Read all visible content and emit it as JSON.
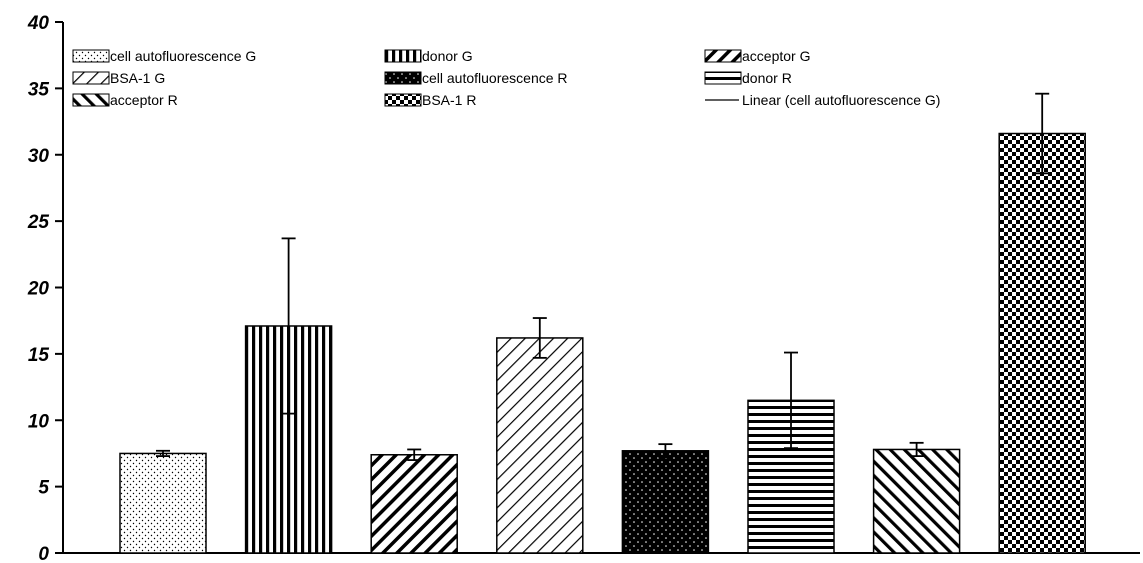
{
  "chart_data": {
    "type": "bar",
    "title": "",
    "xlabel": "",
    "ylabel": "",
    "ylim": [
      0,
      40
    ],
    "yticks": [
      0,
      5,
      10,
      15,
      20,
      25,
      30,
      35,
      40
    ],
    "grid": false,
    "legend_position": "top",
    "series": [
      {
        "name": "cell autofluorescence G",
        "value": 7.5,
        "error": 0.2,
        "pattern": "dots-sparse"
      },
      {
        "name": "donor G",
        "value": 17.1,
        "error": 6.6,
        "pattern": "vertical-lines"
      },
      {
        "name": "acceptor G",
        "value": 7.4,
        "error": 0.4,
        "pattern": "diagonal-up-thick"
      },
      {
        "name": "BSA-1 G",
        "value": 16.2,
        "error": 1.5,
        "pattern": "diagonal-up-thin"
      },
      {
        "name": "cell autofluorescence R",
        "value": 7.7,
        "error": 0.5,
        "pattern": "black-dots"
      },
      {
        "name": "donor R",
        "value": 11.5,
        "error": 3.6,
        "pattern": "horizontal-lines"
      },
      {
        "name": "acceptor R",
        "value": 7.8,
        "error": 0.5,
        "pattern": "diagonal-down"
      },
      {
        "name": "BSA-1 R",
        "value": 31.6,
        "error": 3.0,
        "pattern": "checker"
      }
    ],
    "extra_legend_entries": [
      {
        "name": "Linear (cell autofluorescence G)",
        "symbol": "line"
      }
    ]
  }
}
